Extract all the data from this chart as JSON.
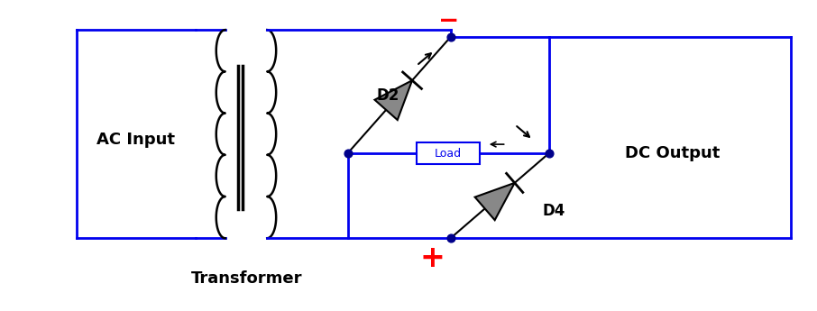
{
  "bg_color": "#ffffff",
  "line_color": "#0000ee",
  "diode_color": "#888888",
  "label_color_black": "#000000",
  "red_color": "#ff0000",
  "load_color": "#0000ee",
  "line_width": 2.0,
  "labels": {
    "ac_input": "AC Input",
    "transformer": "Transformer",
    "dc_output": "DC Output",
    "d2": "D2",
    "d4": "D4",
    "load": "Load"
  },
  "label_fontsize": 13,
  "diode_label_fontsize": 12
}
